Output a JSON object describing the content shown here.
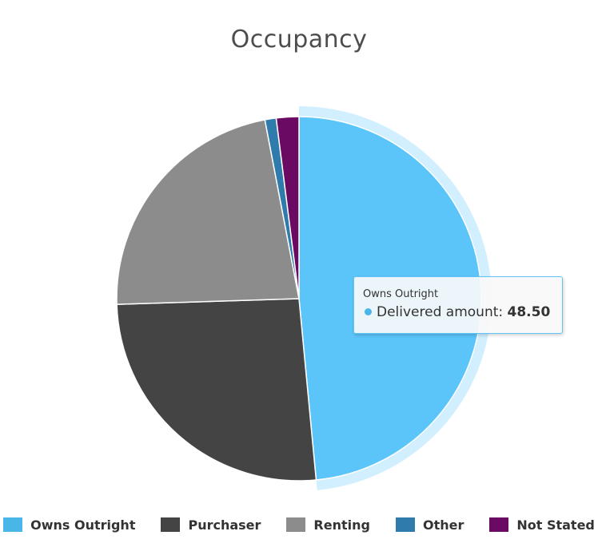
{
  "chart_data": {
    "type": "pie",
    "title": "Occupancy",
    "series_name": "Delivered amount",
    "slices": [
      {
        "name": "Owns Outright",
        "value": 48.5,
        "color": "#5bc5fa"
      },
      {
        "name": "Purchaser",
        "value": 26.0,
        "color": "#444444"
      },
      {
        "name": "Renting",
        "value": 22.5,
        "color": "#8c8c8c"
      },
      {
        "name": "Other",
        "value": 1.0,
        "color": "#2e7bac"
      },
      {
        "name": "Not Stated",
        "value": 2.0,
        "color": "#6a0a63"
      }
    ],
    "hovered_slice": "Owns Outright",
    "legend_position": "bottom"
  },
  "tooltip": {
    "header": "Owns Outright",
    "label": "Delivered amount: ",
    "value": "48.50"
  },
  "legend": {
    "items": [
      {
        "label": "Owns Outright",
        "color": "#4ab6e8"
      },
      {
        "label": "Purchaser",
        "color": "#444444"
      },
      {
        "label": "Renting",
        "color": "#8c8c8c"
      },
      {
        "label": "Other",
        "color": "#2e7bac"
      },
      {
        "label": "Not Stated",
        "color": "#6a0a63"
      }
    ]
  }
}
